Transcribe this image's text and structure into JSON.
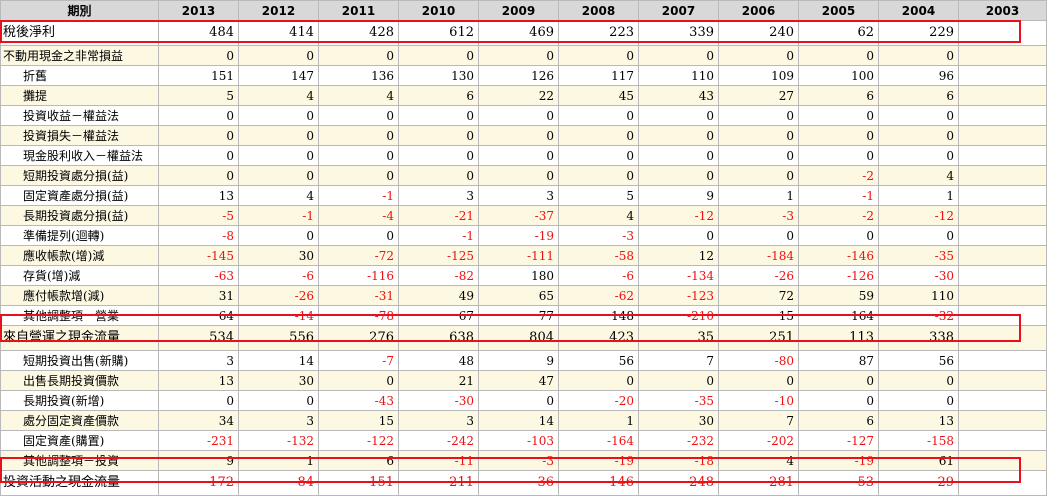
{
  "header": {
    "period_label": "期別",
    "years": [
      "2013",
      "2012",
      "2011",
      "2010",
      "2009",
      "2008",
      "2007",
      "2006",
      "2005",
      "2004",
      "2003"
    ]
  },
  "rows": [
    {
      "label": "稅後淨利",
      "indent": false,
      "major": true,
      "values": [
        "484",
        "414",
        "428",
        "612",
        "469",
        "223",
        "339",
        "240",
        "62",
        "229",
        ""
      ]
    },
    {
      "label": "不動用現金之非常損益",
      "indent": false,
      "major": false,
      "values": [
        "0",
        "0",
        "0",
        "0",
        "0",
        "0",
        "0",
        "0",
        "0",
        "0",
        ""
      ]
    },
    {
      "label": "折舊",
      "indent": true,
      "major": false,
      "values": [
        "151",
        "147",
        "136",
        "130",
        "126",
        "117",
        "110",
        "109",
        "100",
        "96",
        ""
      ]
    },
    {
      "label": "攤提",
      "indent": true,
      "major": false,
      "values": [
        "5",
        "4",
        "4",
        "6",
        "22",
        "45",
        "43",
        "27",
        "6",
        "6",
        ""
      ]
    },
    {
      "label": "投資收益－權益法",
      "indent": true,
      "major": false,
      "values": [
        "0",
        "0",
        "0",
        "0",
        "0",
        "0",
        "0",
        "0",
        "0",
        "0",
        ""
      ]
    },
    {
      "label": "投資損失－權益法",
      "indent": true,
      "major": false,
      "values": [
        "0",
        "0",
        "0",
        "0",
        "0",
        "0",
        "0",
        "0",
        "0",
        "0",
        ""
      ]
    },
    {
      "label": "現金股利收入－權益法",
      "indent": true,
      "major": false,
      "values": [
        "0",
        "0",
        "0",
        "0",
        "0",
        "0",
        "0",
        "0",
        "0",
        "0",
        ""
      ]
    },
    {
      "label": "短期投資處分損(益)",
      "indent": true,
      "major": false,
      "values": [
        "0",
        "0",
        "0",
        "0",
        "0",
        "0",
        "0",
        "0",
        "-2",
        "4",
        ""
      ]
    },
    {
      "label": "固定資產處分損(益)",
      "indent": true,
      "major": false,
      "values": [
        "13",
        "4",
        "-1",
        "3",
        "3",
        "5",
        "9",
        "1",
        "-1",
        "1",
        ""
      ]
    },
    {
      "label": "長期投資處分損(益)",
      "indent": true,
      "major": false,
      "values": [
        "-5",
        "-1",
        "-4",
        "-21",
        "-37",
        "4",
        "-12",
        "-3",
        "-2",
        "-12",
        ""
      ]
    },
    {
      "label": "準備提列(迴轉)",
      "indent": true,
      "major": false,
      "values": [
        "-8",
        "0",
        "0",
        "-1",
        "-19",
        "-3",
        "0",
        "0",
        "0",
        "0",
        ""
      ]
    },
    {
      "label": "應收帳款(增)減",
      "indent": true,
      "major": false,
      "values": [
        "-145",
        "30",
        "-72",
        "-125",
        "-111",
        "-58",
        "12",
        "-184",
        "-146",
        "-35",
        ""
      ]
    },
    {
      "label": "存貨(增)減",
      "indent": true,
      "major": false,
      "values": [
        "-63",
        "-6",
        "-116",
        "-82",
        "180",
        "-6",
        "-134",
        "-26",
        "-126",
        "-30",
        ""
      ]
    },
    {
      "label": "應付帳款增(減)",
      "indent": true,
      "major": false,
      "values": [
        "31",
        "-26",
        "-31",
        "49",
        "65",
        "-62",
        "-123",
        "72",
        "59",
        "110",
        ""
      ]
    },
    {
      "label": "其他調整項－營業",
      "indent": true,
      "major": false,
      "values": [
        "64",
        "-14",
        "-78",
        "67",
        "77",
        "148",
        "-210",
        "15",
        "164",
        "-32",
        ""
      ]
    },
    {
      "label": "來自營運之現金流量",
      "indent": false,
      "major": true,
      "values": [
        "534",
        "556",
        "276",
        "638",
        "804",
        "423",
        "35",
        "251",
        "113",
        "338",
        ""
      ]
    },
    {
      "label": "短期投資出售(新購)",
      "indent": true,
      "major": false,
      "values": [
        "3",
        "14",
        "-7",
        "48",
        "9",
        "56",
        "7",
        "-80",
        "87",
        "56",
        ""
      ]
    },
    {
      "label": "出售長期投資價款",
      "indent": true,
      "major": false,
      "values": [
        "13",
        "30",
        "0",
        "21",
        "47",
        "0",
        "0",
        "0",
        "0",
        "0",
        ""
      ]
    },
    {
      "label": "長期投資(新增)",
      "indent": true,
      "major": false,
      "values": [
        "0",
        "0",
        "-43",
        "-30",
        "0",
        "-20",
        "-35",
        "-10",
        "0",
        "0",
        ""
      ]
    },
    {
      "label": "處分固定資產價款",
      "indent": true,
      "major": false,
      "values": [
        "34",
        "3",
        "15",
        "3",
        "14",
        "1",
        "30",
        "7",
        "6",
        "13",
        ""
      ]
    },
    {
      "label": "固定資產(購置)",
      "indent": true,
      "major": false,
      "values": [
        "-231",
        "-132",
        "-122",
        "-242",
        "-103",
        "-164",
        "-232",
        "-202",
        "-127",
        "-158",
        ""
      ]
    },
    {
      "label": "其他調整項－投資",
      "indent": true,
      "major": false,
      "values": [
        "9",
        "1",
        "6",
        "-11",
        "-3",
        "-19",
        "-18",
        "4",
        "-19",
        "61",
        ""
      ]
    },
    {
      "label": "投資活動之現金流量",
      "indent": false,
      "major": true,
      "values": [
        "-172",
        "-84",
        "-151",
        "-211",
        "-36",
        "-146",
        "-248",
        "-281",
        "-53",
        "-29",
        ""
      ]
    }
  ],
  "colors": {
    "negative": "#ee1111",
    "highlight_border": "#e8101c",
    "header_bg": "#d8d8d8",
    "alt_row_bg": "#fcf8e1"
  }
}
